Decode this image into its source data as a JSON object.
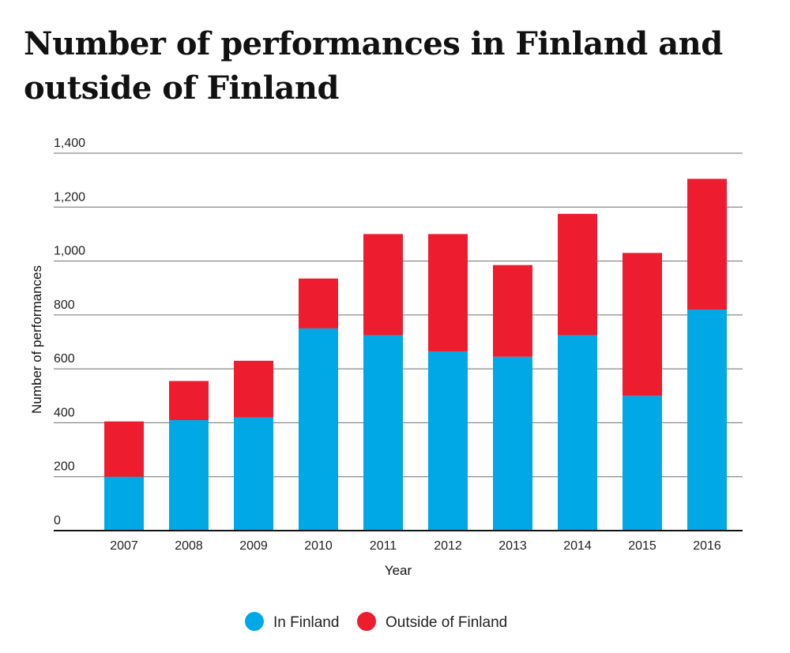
{
  "chart_data": {
    "type": "bar",
    "stacked": true,
    "title": "Number of performances in Finland and outside of Finland",
    "xlabel": "Year",
    "ylabel": "Number of performances",
    "ylim": [
      0,
      1400
    ],
    "yticks": [
      "0",
      "200",
      "400",
      "600",
      "800",
      "1,000",
      "1,200",
      "1,400"
    ],
    "categories": [
      "2007",
      "2008",
      "2009",
      "2010",
      "2011",
      "2012",
      "2013",
      "2014",
      "2015",
      "2016"
    ],
    "series": [
      {
        "name": "In Finland",
        "color": "#00a9e6",
        "values": [
          200,
          410,
          420,
          750,
          725,
          665,
          645,
          725,
          500,
          820
        ]
      },
      {
        "name": "Outside of Finland",
        "color": "#ed1c2e",
        "values": [
          205,
          145,
          210,
          185,
          375,
          435,
          340,
          450,
          530,
          485
        ]
      }
    ],
    "grid": true,
    "legend_position": "bottom"
  }
}
